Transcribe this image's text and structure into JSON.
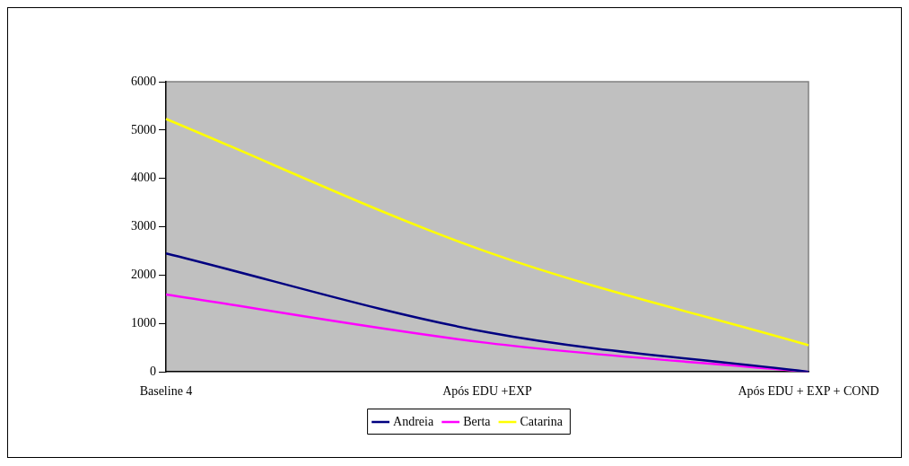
{
  "chart_data": {
    "type": "line",
    "categories": [
      "Baseline 4",
      "Após EDU +EXP",
      "Após EDU + EXP + COND"
    ],
    "series": [
      {
        "name": "Andreia",
        "color": "#000080",
        "values": [
          2450,
          820,
          0
        ]
      },
      {
        "name": "Berta",
        "color": "#ff00ff",
        "values": [
          1600,
          600,
          0
        ]
      },
      {
        "name": "Catarina",
        "color": "#ffff00",
        "values": [
          5230,
          2480,
          550
        ]
      }
    ],
    "ylim": [
      0,
      6000
    ],
    "yticks": [
      0,
      1000,
      2000,
      3000,
      4000,
      5000,
      6000
    ],
    "grid": false,
    "legend": "bottom",
    "marker": "none",
    "line_style": "solid"
  }
}
